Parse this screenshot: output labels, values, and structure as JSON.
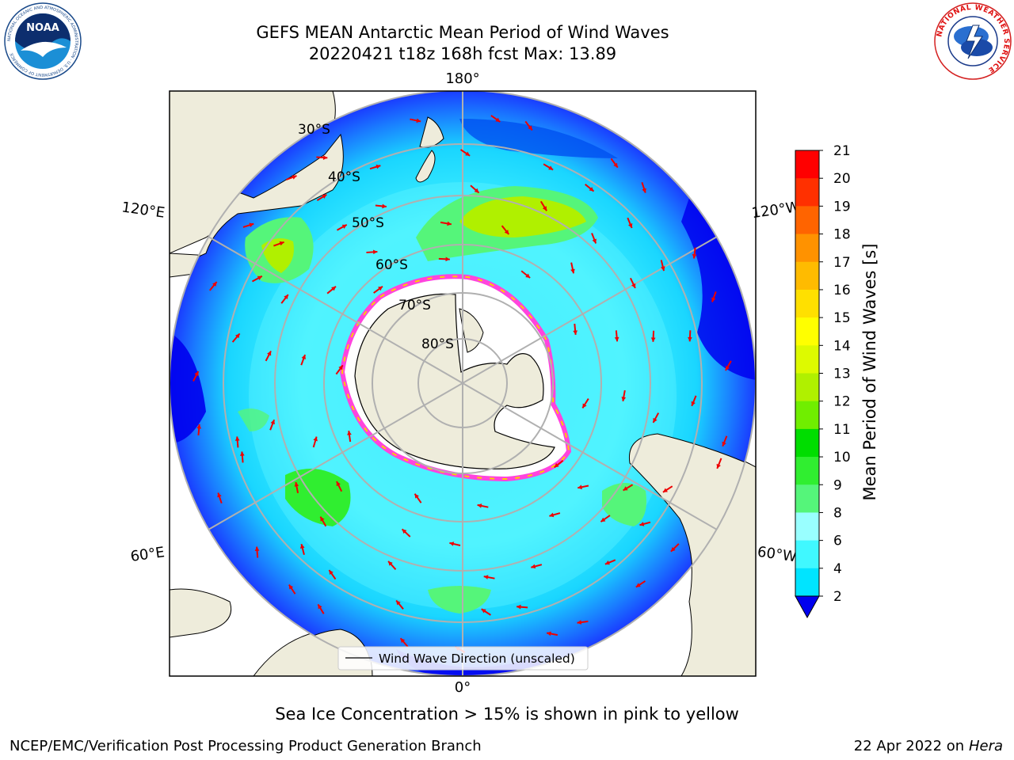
{
  "header": {
    "title_line1": "GEFS MEAN Antarctic Mean Period of Wind Waves",
    "title_line2": "20220421 t18z 168h fcst   Max: 13.89"
  },
  "logos": {
    "noaa_text": "NOAA",
    "noaa_ring": "NATIONAL OCEANIC AND ATMOSPHERIC ADMINISTRATION · U.S. DEPARTMENT OF COMMERCE",
    "nws_ring": "NATIONAL WEATHER SERVICE"
  },
  "map": {
    "projection": "south-polar-stereographic",
    "longitude_labels": [
      "180°",
      "120°E",
      "120°W",
      "60°E",
      "60°W",
      "0°"
    ],
    "latitude_labels": [
      "30°S",
      "40°S",
      "50°S",
      "60°S",
      "70°S",
      "80°S"
    ],
    "legend_entry": "Wind Wave Direction (unscaled)",
    "colors": {
      "land": "#eeecdb",
      "sea_ice_edge": "#ff44dd",
      "arrows": "#ee0000",
      "grid": "#b0b0b0"
    }
  },
  "colorbar": {
    "label": "Mean Period of Wind Waves [s]",
    "ticks": [
      "21",
      "20",
      "19",
      "18",
      "17",
      "16",
      "15",
      "14",
      "13",
      "12",
      "11",
      "10",
      "9",
      "8",
      "6",
      "4",
      "2"
    ],
    "colors": [
      "#0000ee",
      "#0070ff",
      "#00e4ff",
      "#40f8ff",
      "#99ffff",
      "#55f57a",
      "#30ee30",
      "#00dd00",
      "#70ee00",
      "#b0f000",
      "#ddfa00",
      "#ffff00",
      "#ffe000",
      "#ffbb00",
      "#ff9200",
      "#ff6400",
      "#ff3000",
      "#ff0000"
    ]
  },
  "footer": {
    "note": "Sea Ice Concentration > 15% is shown in pink to yellow",
    "left": "NCEP/EMC/Verification Post Processing Product Generation Branch",
    "right_date": "22 Apr 2022 on",
    "right_host": "Hera"
  }
}
